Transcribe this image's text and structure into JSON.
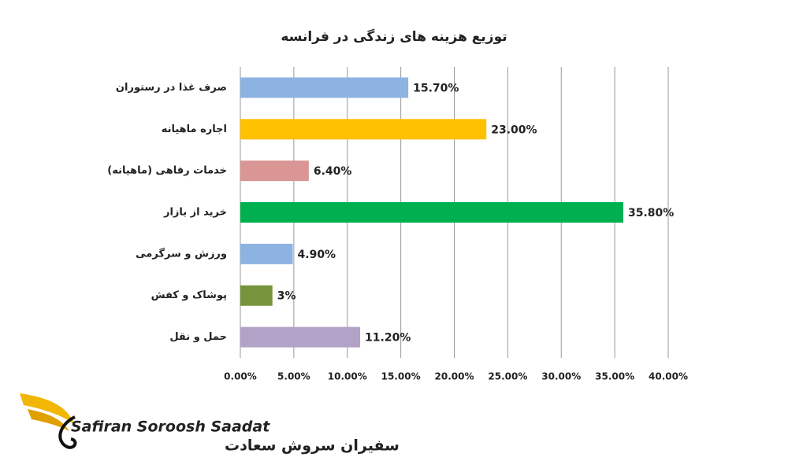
{
  "chart_data": {
    "type": "bar",
    "orientation": "horizontal",
    "title": "توزیع هزینه های زندگی در فرانسه",
    "categories": [
      "صرف غذا در رستوران",
      "اجاره ماهیانه",
      "خدمات رفاهی (ماهیانه)",
      "خرید از بازار",
      "ورزش و سرگرمی",
      "پوشاک و کفش",
      "حمل و نقل"
    ],
    "values": [
      15.7,
      23.0,
      6.4,
      35.8,
      4.9,
      3,
      11.2
    ],
    "value_labels": [
      "15.70%",
      "23.00%",
      "6.40%",
      "35.80%",
      "4.90%",
      "3%",
      "11.20%"
    ],
    "colors": [
      "#8db3e2",
      "#ffc000",
      "#d99694",
      "#00b050",
      "#8db3e2",
      "#77933c",
      "#b3a2c7"
    ],
    "xlim": [
      0,
      40
    ],
    "xticks": [
      {
        "value": 0,
        "label": "0.00%"
      },
      {
        "value": 5,
        "label": "5.00%"
      },
      {
        "value": 10,
        "label": "10.00%"
      },
      {
        "value": 15,
        "label": "15.00%"
      },
      {
        "value": 20,
        "label": "20.00%"
      },
      {
        "value": 25,
        "label": "25.00%"
      },
      {
        "value": 30,
        "label": "30.00%"
      },
      {
        "value": 35,
        "label": "35.00%"
      },
      {
        "value": 40,
        "label": "40.00%"
      }
    ],
    "grid": true
  },
  "logo": {
    "latin": "Safiran Soroosh Saadat",
    "persian": "سفیران سروش سعادت"
  }
}
